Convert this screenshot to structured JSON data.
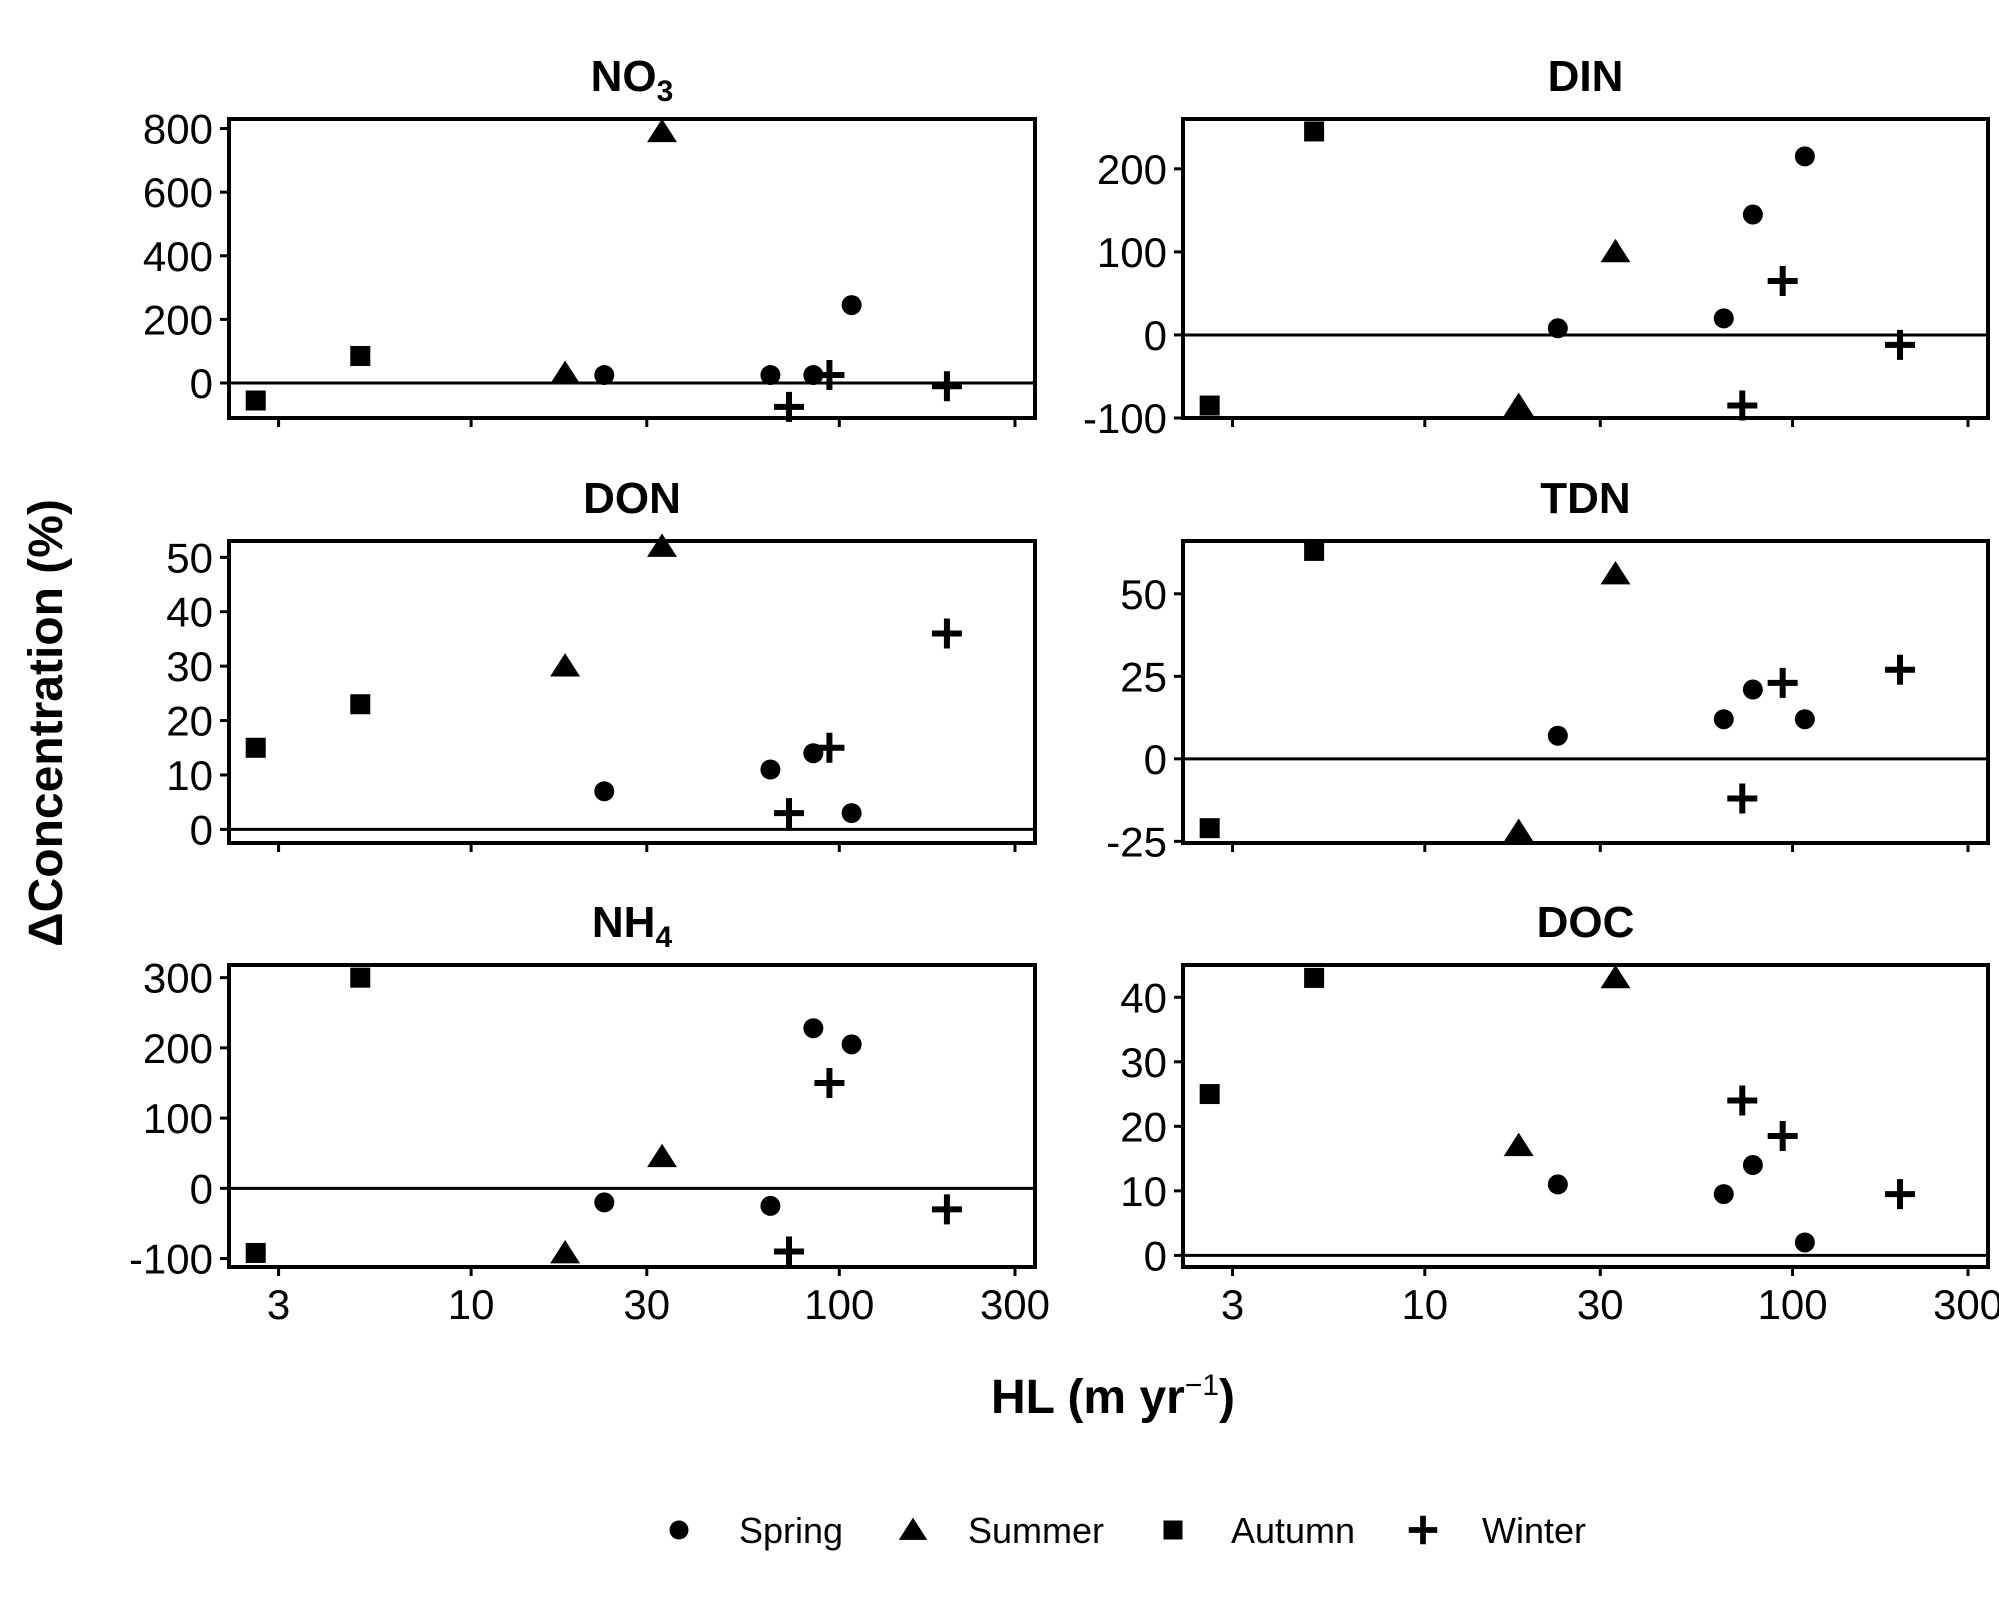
{
  "figure": {
    "ylabel": "ΔConcentration (%)",
    "xlabel": "HL (m yr",
    "xlabel_sup": "−1",
    "xlabel_close": ")"
  },
  "legend": [
    {
      "season": "Spring",
      "label": "Spring",
      "shape": "circle"
    },
    {
      "season": "Summer",
      "label": "Summer",
      "shape": "triangle"
    },
    {
      "season": "Autumn",
      "label": "Autumn",
      "shape": "square"
    },
    {
      "season": "Winter",
      "label": "Winter",
      "shape": "plus"
    }
  ],
  "chart_data": [
    {
      "type": "scatter",
      "id": "no3",
      "title": "NO",
      "title_sub": "3",
      "x_scale": "log",
      "xlim": [
        2.2,
        340
      ],
      "x_ticks": [
        3,
        10,
        30,
        100,
        300
      ],
      "ylim": [
        -110,
        830
      ],
      "y_ticks": [
        0,
        200,
        400,
        600,
        800
      ],
      "zero_line": true,
      "show_x_labels": false,
      "series": [
        {
          "season": "Spring",
          "points": [
            [
              23,
              25
            ],
            [
              65,
              25
            ],
            [
              85,
              25
            ],
            [
              108,
              245
            ]
          ]
        },
        {
          "season": "Summer",
          "points": [
            [
              18,
              30
            ],
            [
              33,
              790
            ]
          ]
        },
        {
          "season": "Autumn",
          "points": [
            [
              2.6,
              -55
            ],
            [
              5,
              85
            ]
          ]
        },
        {
          "season": "Winter",
          "points": [
            [
              73,
              -75
            ],
            [
              94,
              25
            ],
            [
              196,
              -10
            ]
          ]
        }
      ]
    },
    {
      "type": "scatter",
      "id": "din",
      "title": "DIN",
      "x_scale": "log",
      "xlim": [
        2.2,
        340
      ],
      "x_ticks": [
        3,
        10,
        30,
        100,
        300
      ],
      "ylim": [
        -100,
        260
      ],
      "y_ticks": [
        -100,
        0,
        100,
        200
      ],
      "zero_line": true,
      "show_x_labels": false,
      "series": [
        {
          "season": "Spring",
          "points": [
            [
              23,
              8
            ],
            [
              65,
              20
            ],
            [
              78,
              145
            ],
            [
              108,
              215
            ]
          ]
        },
        {
          "season": "Summer",
          "points": [
            [
              18,
              -85
            ],
            [
              33,
              100
            ]
          ]
        },
        {
          "season": "Autumn",
          "points": [
            [
              2.6,
              -85
            ],
            [
              5,
              245
            ]
          ]
        },
        {
          "season": "Winter",
          "points": [
            [
              73,
              -85
            ],
            [
              94,
              65
            ],
            [
              196,
              -12
            ]
          ]
        }
      ]
    },
    {
      "type": "scatter",
      "id": "don",
      "title": "DON",
      "x_scale": "log",
      "xlim": [
        2.2,
        340
      ],
      "x_ticks": [
        3,
        10,
        30,
        100,
        300
      ],
      "ylim": [
        -2.5,
        53
      ],
      "y_ticks": [
        0,
        10,
        20,
        30,
        40,
        50
      ],
      "zero_line": true,
      "show_x_labels": false,
      "series": [
        {
          "season": "Spring",
          "points": [
            [
              23,
              7
            ],
            [
              65,
              11
            ],
            [
              85,
              14
            ],
            [
              108,
              3
            ]
          ]
        },
        {
          "season": "Summer",
          "points": [
            [
              18,
              30
            ],
            [
              33,
              52
            ]
          ]
        },
        {
          "season": "Autumn",
          "points": [
            [
              2.6,
              15
            ],
            [
              5,
              23
            ]
          ]
        },
        {
          "season": "Winter",
          "points": [
            [
              73,
              3
            ],
            [
              94,
              15
            ],
            [
              196,
              36
            ]
          ]
        }
      ]
    },
    {
      "type": "scatter",
      "id": "tdn",
      "title": "TDN",
      "x_scale": "log",
      "xlim": [
        2.2,
        340
      ],
      "x_ticks": [
        3,
        10,
        30,
        100,
        300
      ],
      "ylim": [
        -25.5,
        66
      ],
      "y_ticks": [
        -25,
        0,
        25,
        50
      ],
      "zero_line": true,
      "show_x_labels": false,
      "series": [
        {
          "season": "Spring",
          "points": [
            [
              23,
              7
            ],
            [
              65,
              12
            ],
            [
              78,
              21
            ],
            [
              108,
              12
            ]
          ]
        },
        {
          "season": "Summer",
          "points": [
            [
              18,
              -22
            ],
            [
              33,
              56
            ]
          ]
        },
        {
          "season": "Autumn",
          "points": [
            [
              2.6,
              -21
            ],
            [
              5,
              63
            ]
          ]
        },
        {
          "season": "Winter",
          "points": [
            [
              73,
              -12
            ],
            [
              94,
              23
            ],
            [
              196,
              27
            ]
          ]
        }
      ]
    },
    {
      "type": "scatter",
      "id": "nh4",
      "title": "NH",
      "title_sub": "4",
      "x_scale": "log",
      "xlim": [
        2.2,
        340
      ],
      "x_ticks": [
        3,
        10,
        30,
        100,
        300
      ],
      "ylim": [
        -112,
        318
      ],
      "y_ticks": [
        -100,
        0,
        100,
        200,
        300
      ],
      "zero_line": true,
      "show_x_labels": true,
      "series": [
        {
          "season": "Spring",
          "points": [
            [
              23,
              -20
            ],
            [
              65,
              -25
            ],
            [
              85,
              228
            ],
            [
              108,
              205
            ]
          ]
        },
        {
          "season": "Summer",
          "points": [
            [
              18,
              -92
            ],
            [
              33,
              45
            ]
          ]
        },
        {
          "season": "Autumn",
          "points": [
            [
              2.6,
              -92
            ],
            [
              5,
              300
            ]
          ]
        },
        {
          "season": "Winter",
          "points": [
            [
              73,
              -90
            ],
            [
              94,
              150
            ],
            [
              196,
              -30
            ]
          ]
        }
      ]
    },
    {
      "type": "scatter",
      "id": "doc",
      "title": "DOC",
      "x_scale": "log",
      "xlim": [
        2.2,
        340
      ],
      "x_ticks": [
        3,
        10,
        30,
        100,
        300
      ],
      "ylim": [
        -1.8,
        45
      ],
      "y_ticks": [
        0,
        10,
        20,
        30,
        40
      ],
      "zero_line": true,
      "show_x_labels": true,
      "series": [
        {
          "season": "Spring",
          "points": [
            [
              23,
              11
            ],
            [
              65,
              9.5
            ],
            [
              78,
              14
            ],
            [
              108,
              2
            ]
          ]
        },
        {
          "season": "Summer",
          "points": [
            [
              18,
              17
            ],
            [
              33,
              43
            ]
          ]
        },
        {
          "season": "Autumn",
          "points": [
            [
              2.6,
              25
            ],
            [
              5,
              43
            ]
          ]
        },
        {
          "season": "Winter",
          "points": [
            [
              73,
              24
            ],
            [
              94,
              18.5
            ],
            [
              196,
              9.5
            ]
          ]
        }
      ]
    }
  ]
}
